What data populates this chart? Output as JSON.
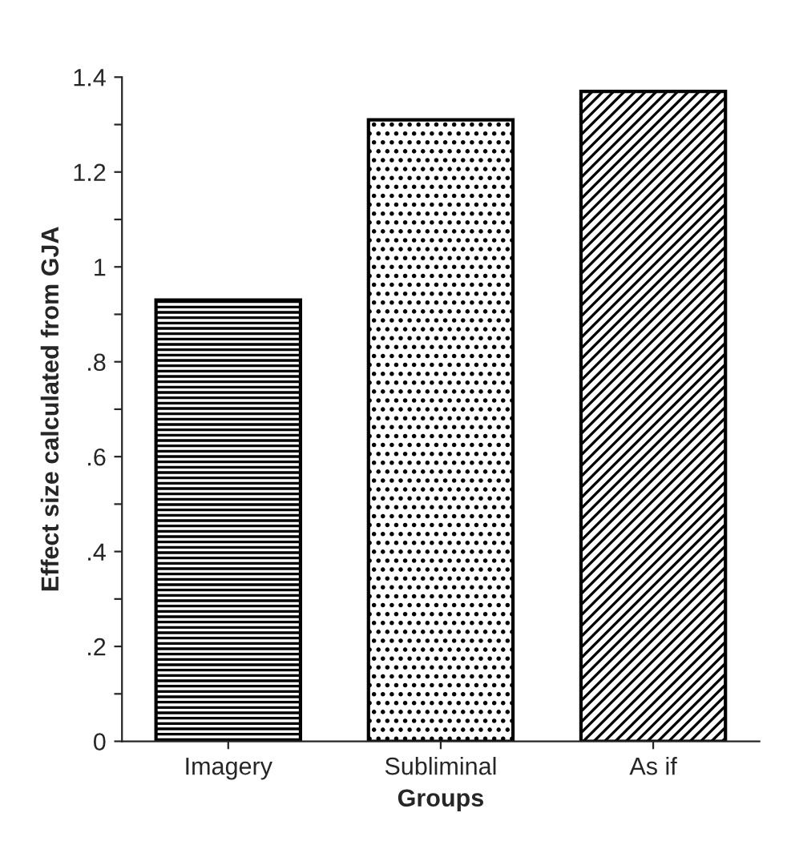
{
  "chart_data": {
    "type": "bar",
    "xlabel": "Groups",
    "ylabel": "Effect size calculated from GJA",
    "categories": [
      "Imagery",
      "Subliminal",
      "As if"
    ],
    "values": [
      0.93,
      1.31,
      1.37
    ],
    "ylim": [
      0,
      1.4
    ],
    "yticks": [
      0,
      {
        "value": 0.1,
        "label": null
      },
      {
        "value": 0.2,
        "label": ".2"
      },
      {
        "value": 0.3,
        "label": null
      },
      {
        "value": 0.4,
        "label": ".4"
      },
      {
        "value": 0.5,
        "label": null
      },
      {
        "value": 0.6,
        "label": ".6"
      },
      {
        "value": 0.7,
        "label": null
      },
      {
        "value": 0.8,
        "label": ".8"
      },
      {
        "value": 0.9,
        "label": null
      },
      1,
      {
        "value": 1.1,
        "label": null
      },
      1.2,
      {
        "value": 1.3,
        "label": null
      },
      1.4
    ],
    "grid": false,
    "legend": false
  }
}
